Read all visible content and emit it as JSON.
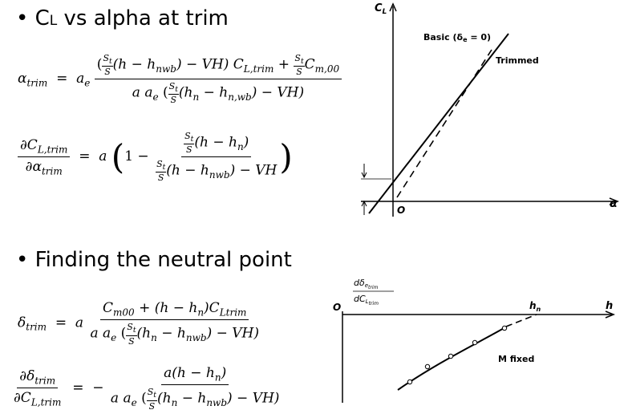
{
  "slide": {
    "bullet1": {
      "prefix": "• C",
      "sub": "L",
      "rest": " vs alpha at trim"
    },
    "bullet2": "• Finding the neutral point"
  },
  "eq_alpha_trim": {
    "lhs": "α",
    "lhs_sub": "trim",
    "eq": "=",
    "ae": "a",
    "ae_sub": "e",
    "numerator": "(h − h",
    "num_sub": "nwb",
    "num_tail": ") − VH) C",
    "num_cl_sub": "L,trim",
    "num_plus": " + ",
    "cm": "C",
    "cm_sub": "m,00",
    "denominator": "a a",
    "den_tail": "(h",
    "den_sub": "n",
    "den_minus": " − h",
    "den_sub2": "n,wb",
    "den_end": ") − VH)"
  },
  "eq_dcl": {
    "lhs_num": "∂C",
    "lhs_num_sub": "L,trim",
    "lhs_den": "∂α",
    "lhs_den_sub": "trim",
    "eq": "=",
    "a": "a",
    "one": "1 −",
    "inner_num": "(h − h",
    "inner_num_sub": "n",
    "inner_num_end": ")",
    "inner_den": "(h − h",
    "inner_den_sub": "nwb",
    "inner_den_end": ") − VH"
  },
  "eq_delta_trim": {
    "lhs": "δ",
    "lhs_sub": "trim",
    "eq": "=",
    "a": "a",
    "numerator": "C",
    "num_sub": "m00",
    "num_mid": " + (h − h",
    "num_sub2": "n",
    "num_mid2": ")C",
    "num_sub3": "Ltrim",
    "den_start": "a a",
    "den_sub": "e",
    "den_mid": "(h",
    "den_sub2": "n",
    "den_mid2": " − h",
    "den_sub3": "nwb",
    "den_end": ") − VH)"
  },
  "eq_ddelta": {
    "lhs_num": "∂δ",
    "lhs_num_sub": "trim",
    "lhs_den": "∂C",
    "lhs_den_sub": "L,trim",
    "eq": "=",
    "minus": "−",
    "numerator": "a(h − h",
    "num_sub": "n",
    "num_end": ")",
    "den_start": "a a",
    "den_sub": "e",
    "den_mid": "(h",
    "den_sub2": "n",
    "den_mid2": " − h",
    "den_sub3": "nwb",
    "den_end": ") − VH)"
  },
  "frac_st_s": {
    "num": "S",
    "num_sub": "t",
    "den": "S"
  },
  "graph1": {
    "y_label": "C",
    "y_label_sub": "L",
    "x_label": "α",
    "origin": "O",
    "basic_label": "Basic (δ",
    "basic_sub": "e",
    "basic_end": " = 0)",
    "trimmed_label": "Trimmed"
  },
  "graph2": {
    "y_label_num": "dδ",
    "y_label_num_sub": "e",
    "y_label_num_subsub": "trim",
    "y_label_den": "dC",
    "y_label_den_sub": "L",
    "y_label_den_subsub": "trim",
    "origin": "O",
    "hn_label": "h",
    "hn_sub": "n",
    "x_label": "h",
    "curve_label": "M fixed"
  }
}
